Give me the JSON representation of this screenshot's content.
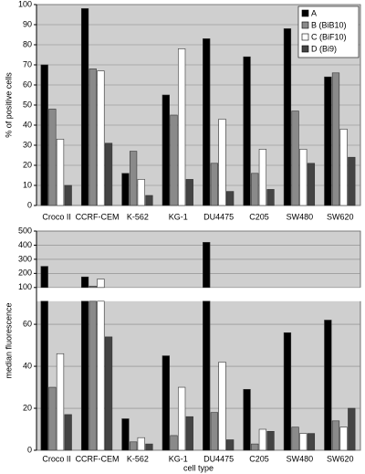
{
  "chart_data": [
    {
      "type": "bar",
      "y_label": "% of positive cells",
      "categories": [
        "Croco II",
        "CCRF-CEM",
        "K-562",
        "KG-1",
        "DU4475",
        "C205",
        "SW480",
        "SW620"
      ],
      "series": [
        {
          "name": "A",
          "color": "#000000",
          "values": [
            70,
            98,
            16,
            55,
            83,
            74,
            88,
            64
          ]
        },
        {
          "name": "B (BiB10)",
          "color": "#8a8a8a",
          "values": [
            48,
            68,
            27,
            45,
            21,
            16,
            47,
            66
          ]
        },
        {
          "name": "C (BiF10)",
          "color": "#ffffff",
          "values": [
            33,
            67,
            13,
            78,
            43,
            28,
            28,
            38
          ]
        },
        {
          "name": "D (Bi9)",
          "color": "#444444",
          "values": [
            10,
            31,
            5,
            13,
            7,
            8,
            21,
            24
          ]
        }
      ],
      "ylim": [
        0,
        100
      ],
      "yticks": [
        0,
        10,
        20,
        30,
        40,
        50,
        60,
        70,
        80,
        90,
        100
      ],
      "grid": true,
      "legend": "top-right"
    },
    {
      "type": "bar",
      "y_label": "median fluorescence",
      "x_label": "cell type",
      "categories": [
        "Croco II",
        "CCRF-CEM",
        "K-562",
        "KG-1",
        "DU4475",
        "C205",
        "SW480",
        "SW620"
      ],
      "series": [
        {
          "color": "#000000",
          "values": [
            250,
            175,
            15,
            45,
            420,
            29,
            56,
            62
          ]
        },
        {
          "color": "#8a8a8a",
          "values": [
            30,
            110,
            4,
            7,
            18,
            3,
            11,
            14
          ]
        },
        {
          "color": "#ffffff",
          "values": [
            46,
            160,
            6,
            30,
            42,
            10,
            8,
            11
          ]
        },
        {
          "color": "#444444",
          "values": [
            17,
            54,
            3,
            16,
            5,
            9,
            8,
            20
          ]
        }
      ],
      "y_segments": [
        {
          "ylim": [
            0,
            71
          ],
          "yticks": [
            0,
            20,
            40,
            60
          ]
        },
        {
          "ylim": [
            100,
            500
          ],
          "yticks": [
            100,
            200,
            300,
            400,
            500
          ]
        }
      ],
      "grid": true
    }
  ]
}
